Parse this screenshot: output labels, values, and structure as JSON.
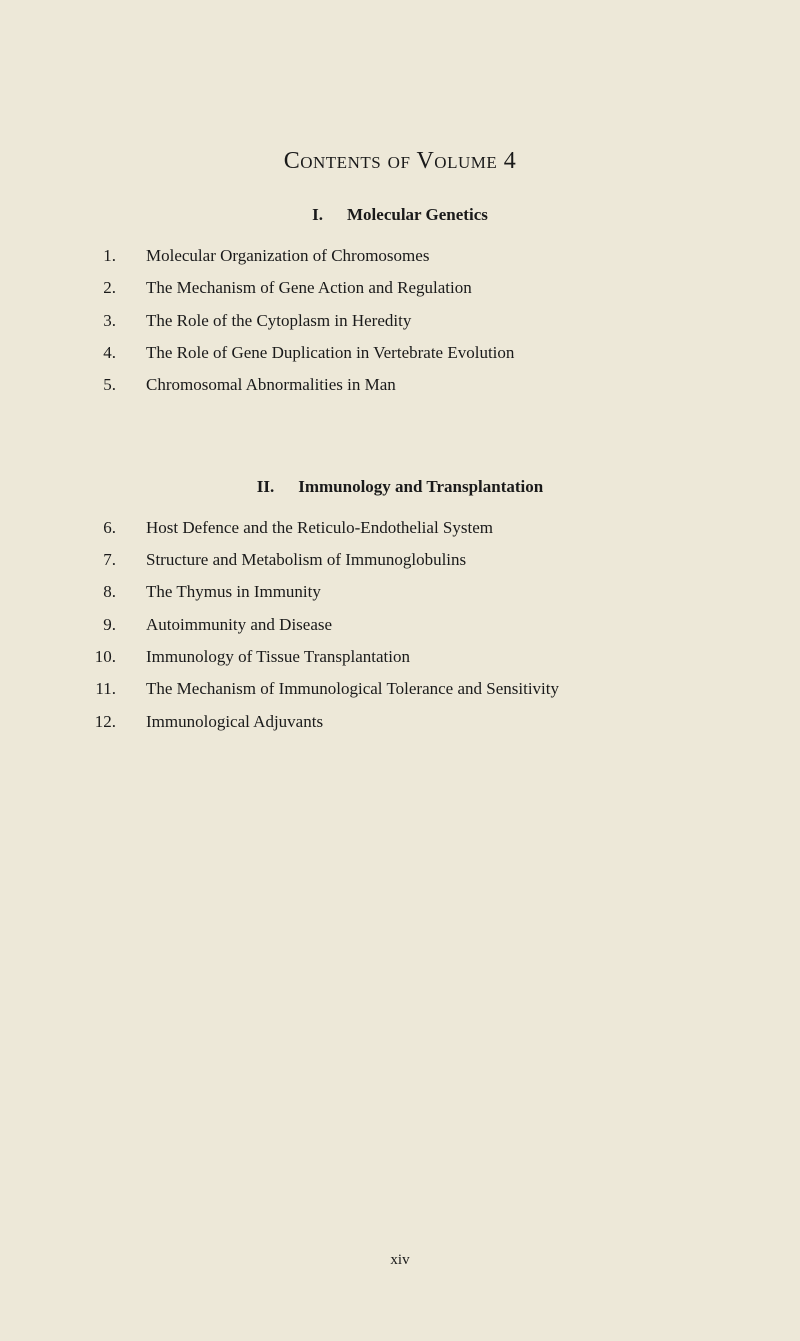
{
  "page": {
    "title": "Contents of Volume 4",
    "page_number": "xiv",
    "background_color": "#ede8d8",
    "text_color": "#1a1a1a"
  },
  "sections": [
    {
      "roman": "I.",
      "heading": "Molecular Genetics",
      "items": [
        {
          "num": "1.",
          "text": "Molecular Organization of Chromosomes"
        },
        {
          "num": "2.",
          "text": "The Mechanism of Gene Action and Regulation"
        },
        {
          "num": "3.",
          "text": "The Role of the Cytoplasm in Heredity"
        },
        {
          "num": "4.",
          "text": "The Role of Gene Duplication in Vertebrate Evolution"
        },
        {
          "num": "5.",
          "text": "Chromosomal Abnormalities in Man"
        }
      ]
    },
    {
      "roman": "II.",
      "heading": "Immunology and Transplantation",
      "items": [
        {
          "num": "6.",
          "text": "Host Defence and the Reticulo-Endothelial System"
        },
        {
          "num": "7.",
          "text": "Structure and Metabolism of Immunoglobulins"
        },
        {
          "num": "8.",
          "text": "The Thymus in Immunity"
        },
        {
          "num": "9.",
          "text": "Autoimmunity and Disease"
        },
        {
          "num": "10.",
          "text": "Immunology of Tissue Transplantation"
        },
        {
          "num": "11.",
          "text": "The Mechanism of Immunological Tolerance and Sensitivity"
        },
        {
          "num": "12.",
          "text": "Immunological Adjuvants"
        }
      ]
    }
  ]
}
